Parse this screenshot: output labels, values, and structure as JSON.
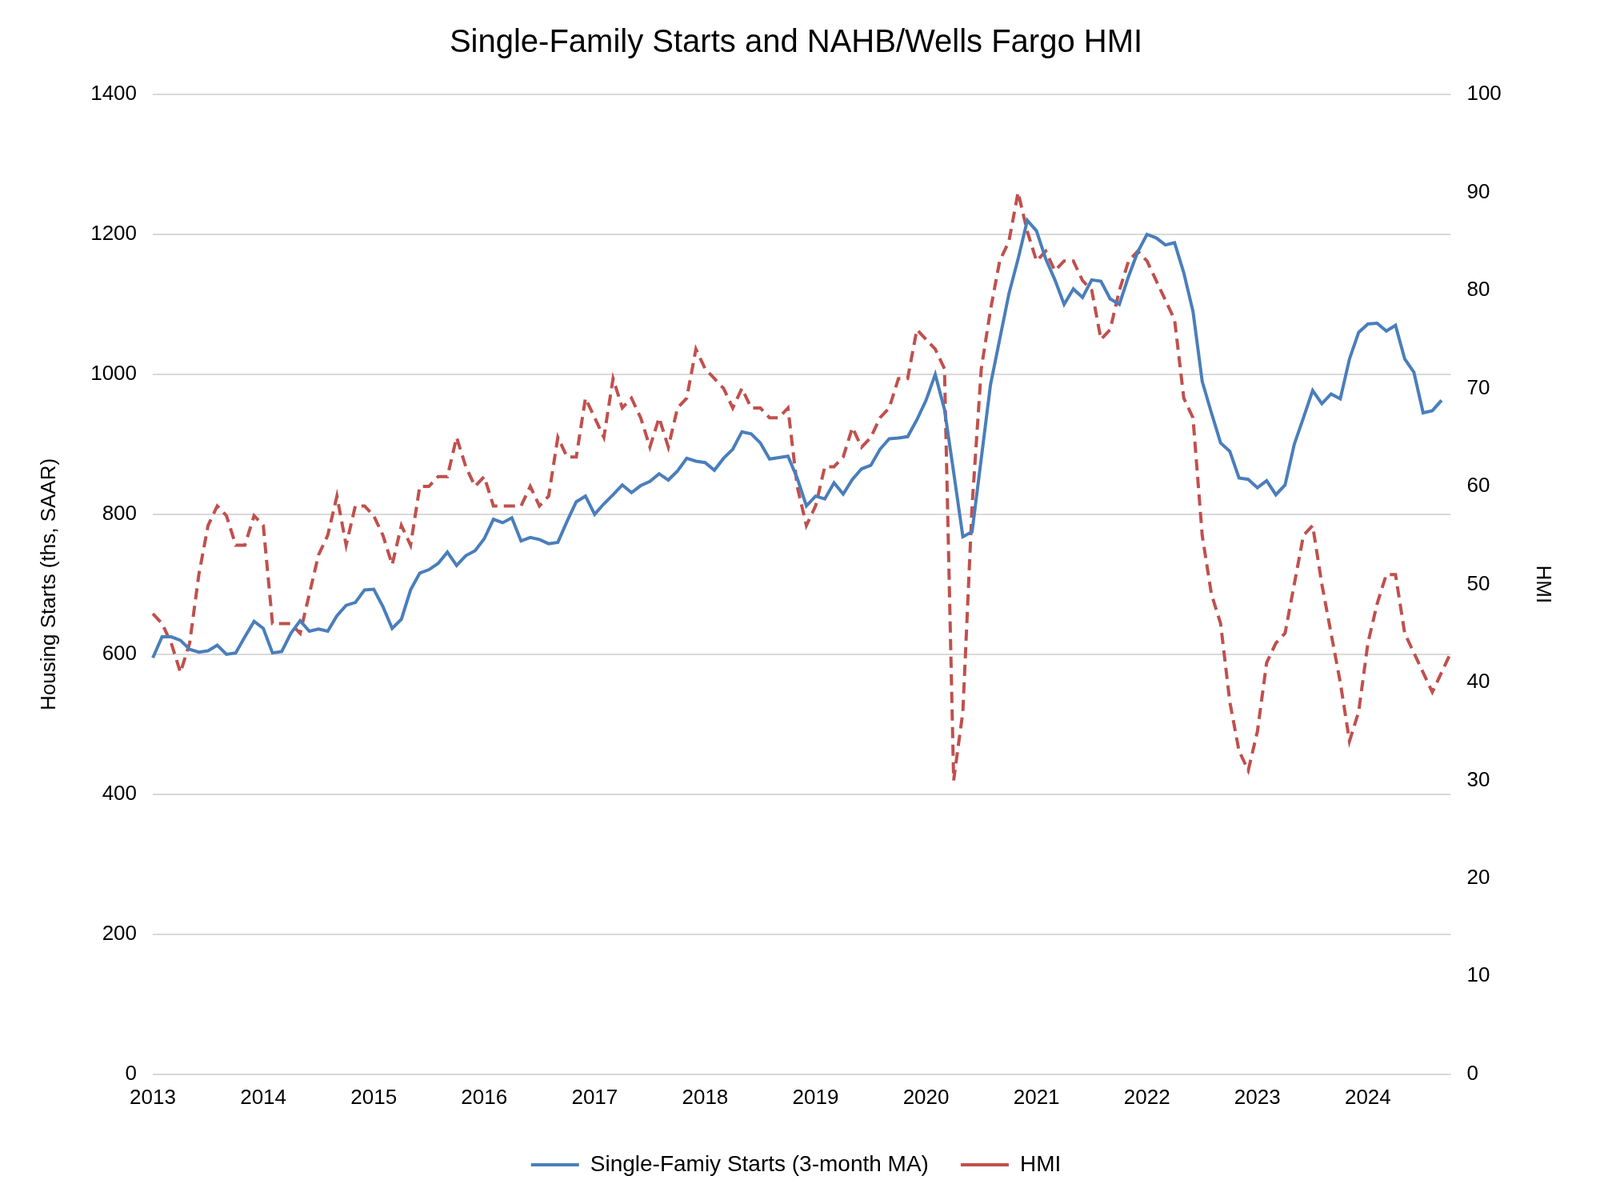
{
  "chart_data": {
    "type": "line",
    "title": "Single-Family Starts and NAHB/Wells Fargo HMI",
    "y_label": "Housing Starts (ths, SAAR)",
    "y2_label": "HMI",
    "categories": [
      "2013",
      null,
      null,
      null,
      null,
      null,
      null,
      null,
      null,
      null,
      null,
      null,
      "2014",
      null,
      null,
      null,
      null,
      null,
      null,
      null,
      null,
      null,
      null,
      null,
      "2015",
      null,
      null,
      null,
      null,
      null,
      null,
      null,
      null,
      null,
      null,
      null,
      "2016",
      null,
      null,
      null,
      null,
      null,
      null,
      null,
      null,
      null,
      null,
      null,
      "2017",
      null,
      null,
      null,
      null,
      null,
      null,
      null,
      null,
      null,
      null,
      null,
      "2018",
      null,
      null,
      null,
      null,
      null,
      null,
      null,
      null,
      null,
      null,
      null,
      "2019",
      null,
      null,
      null,
      null,
      null,
      null,
      null,
      null,
      null,
      null,
      null,
      "2020",
      null,
      null,
      null,
      null,
      null,
      null,
      null,
      null,
      null,
      null,
      null,
      "2021",
      null,
      null,
      null,
      null,
      null,
      null,
      null,
      null,
      null,
      null,
      null,
      "2022",
      null,
      null,
      null,
      null,
      null,
      null,
      null,
      null,
      null,
      null,
      null,
      "2023",
      null,
      null,
      null,
      null,
      null,
      null,
      null,
      null,
      null,
      null,
      null,
      "2024",
      null,
      null,
      null,
      null,
      null,
      null,
      null,
      null,
      null
    ],
    "series": [
      {
        "name": "Single-Famiy Starts (3-month MA)",
        "color": "#4a7ebb",
        "line_style": "solid",
        "values": [
          595,
          625,
          625,
          620,
          607,
          603,
          605,
          613,
          600,
          602,
          625,
          647,
          637,
          602,
          604,
          630,
          648,
          633,
          636,
          633,
          655,
          670,
          674,
          692,
          693,
          668,
          637,
          650,
          692,
          716,
          721,
          730,
          746,
          727,
          741,
          748,
          765,
          793,
          788,
          795,
          762,
          767,
          764,
          758,
          760,
          790,
          818,
          826,
          800,
          815,
          828,
          842,
          831,
          841,
          847,
          858,
          849,
          862,
          880,
          876,
          874,
          863,
          880,
          893,
          918,
          915,
          902,
          879,
          881,
          883,
          852,
          812,
          826,
          822,
          845,
          829,
          850,
          865,
          870,
          893,
          908,
          909,
          911,
          935,
          963,
          1000,
          950,
          860,
          768,
          775,
          880,
          985,
          1050,
          1115,
          1165,
          1220,
          1205,
          1165,
          1135,
          1100,
          1122,
          1110,
          1135,
          1133,
          1108,
          1100,
          1140,
          1175,
          1200,
          1195,
          1185,
          1188,
          1145,
          1090,
          990,
          945,
          902,
          890,
          852,
          850,
          838,
          848,
          828,
          842,
          900,
          938,
          977,
          958,
          972,
          965,
          1022,
          1060,
          1072,
          1073,
          1062,
          1070,
          1022,
          1003,
          945,
          948,
          963,
          null
        ]
      },
      {
        "name": "HMI",
        "color": "#c0504d",
        "line_style": "dashed",
        "axis": "y2",
        "values": [
          47,
          46,
          44,
          41,
          44,
          51,
          56,
          58,
          57,
          54,
          54,
          57,
          56,
          46,
          46,
          46,
          45,
          49,
          53,
          55,
          59,
          54,
          58,
          58,
          57,
          55,
          52,
          56,
          54,
          60,
          60,
          61,
          61,
          65,
          62,
          60,
          61,
          58,
          58,
          58,
          58,
          60,
          58,
          59,
          65,
          63,
          63,
          69,
          67,
          65,
          71,
          68,
          69,
          67,
          64,
          67,
          64,
          68,
          69,
          74,
          72,
          71,
          70,
          68,
          70,
          68,
          68,
          67,
          67,
          68,
          60,
          56,
          58,
          62,
          62,
          63,
          66,
          64,
          65,
          67,
          68,
          71,
          71,
          76,
          75,
          74,
          72,
          30,
          37,
          58,
          72,
          78,
          83,
          85,
          90,
          86,
          83,
          84,
          82,
          83,
          83,
          81,
          80,
          75,
          76,
          80,
          83,
          84,
          83,
          81,
          79,
          77,
          69,
          67,
          55,
          49,
          46,
          38,
          33,
          31,
          35,
          42,
          44,
          45,
          50,
          55,
          56,
          50,
          45,
          40,
          34,
          37,
          44,
          48,
          51,
          51,
          45,
          43,
          41,
          39,
          41,
          43
        ]
      }
    ],
    "ylim": [
      0,
      1400
    ],
    "yticks": [
      0,
      200,
      400,
      600,
      800,
      1000,
      1200,
      1400
    ],
    "y2lim": [
      0,
      100
    ],
    "y2ticks": [
      0,
      10,
      20,
      30,
      40,
      50,
      60,
      70,
      80,
      90,
      100
    ],
    "grid": true,
    "legend": "bottom"
  }
}
